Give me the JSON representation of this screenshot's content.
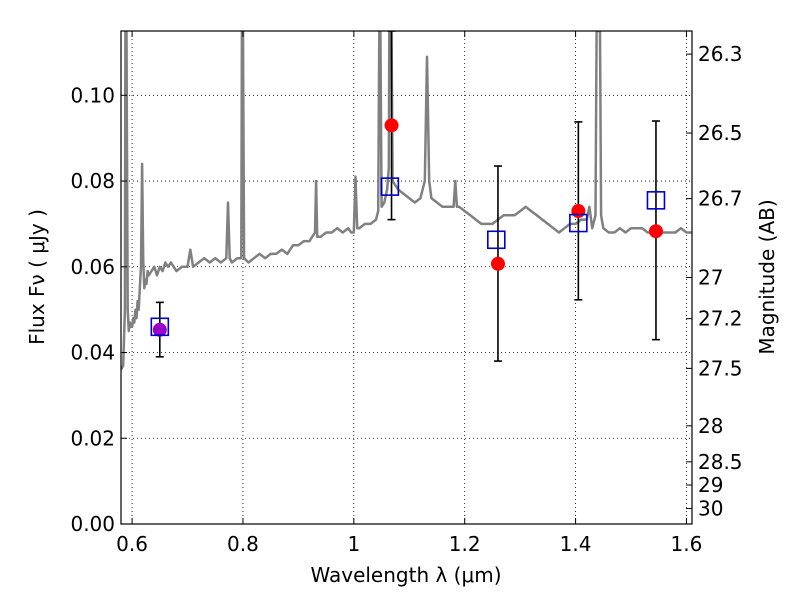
{
  "chart_data": {
    "type": "scatter",
    "xlabel": "Wavelength  λ (μm)",
    "ylabel": "Flux  Fν ( μJy )",
    "y2label": "Magnitude (AB)",
    "xlim": [
      0.58,
      1.61
    ],
    "ylim": [
      0.0,
      0.115
    ],
    "grid": true,
    "x_ticks": [
      "0.6",
      "0.8",
      "1",
      "1.2",
      "1.4",
      "1.6"
    ],
    "y_ticks": [
      "0.00",
      "0.02",
      "0.04",
      "0.06",
      "0.08",
      "0.10"
    ],
    "y2_ticks": [
      {
        "label": "26.3",
        "flux": 0.1096
      },
      {
        "label": "26.5",
        "flux": 0.0912
      },
      {
        "label": "26.7",
        "flux": 0.0759
      },
      {
        "label": "27",
        "flux": 0.0575
      },
      {
        "label": "27.2",
        "flux": 0.0479
      },
      {
        "label": "27.5",
        "flux": 0.0363
      },
      {
        "label": "28",
        "flux": 0.0229
      },
      {
        "label": "28.5",
        "flux": 0.0145
      },
      {
        "label": "29",
        "flux": 0.0091
      },
      {
        "label": "30",
        "flux": 0.0036
      }
    ],
    "model_spectrum": {
      "color": "#808080",
      "points": [
        [
          0.58,
          0.036
        ],
        [
          0.584,
          0.037
        ],
        [
          0.587,
          0.05
        ],
        [
          0.588,
          0.115
        ],
        [
          0.59,
          0.115
        ],
        [
          0.592,
          0.05
        ],
        [
          0.594,
          0.045
        ],
        [
          0.596,
          0.047
        ],
        [
          0.598,
          0.046
        ],
        [
          0.6,
          0.046
        ],
        [
          0.602,
          0.048
        ],
        [
          0.604,
          0.047
        ],
        [
          0.606,
          0.05
        ],
        [
          0.608,
          0.048
        ],
        [
          0.61,
          0.052
        ],
        [
          0.612,
          0.05
        ],
        [
          0.614,
          0.055
        ],
        [
          0.616,
          0.06
        ],
        [
          0.618,
          0.084
        ],
        [
          0.62,
          0.062
        ],
        [
          0.622,
          0.055
        ],
        [
          0.624,
          0.057
        ],
        [
          0.626,
          0.056
        ],
        [
          0.628,
          0.059
        ],
        [
          0.63,
          0.058
        ],
        [
          0.635,
          0.059
        ],
        [
          0.64,
          0.06
        ],
        [
          0.645,
          0.058
        ],
        [
          0.65,
          0.06
        ],
        [
          0.655,
          0.059
        ],
        [
          0.66,
          0.061
        ],
        [
          0.665,
          0.06
        ],
        [
          0.67,
          0.061
        ],
        [
          0.675,
          0.06
        ],
        [
          0.68,
          0.059
        ],
        [
          0.69,
          0.06
        ],
        [
          0.7,
          0.06
        ],
        [
          0.705,
          0.064
        ],
        [
          0.71,
          0.06
        ],
        [
          0.72,
          0.061
        ],
        [
          0.73,
          0.062
        ],
        [
          0.74,
          0.061
        ],
        [
          0.75,
          0.062
        ],
        [
          0.76,
          0.061
        ],
        [
          0.77,
          0.062
        ],
        [
          0.773,
          0.075
        ],
        [
          0.776,
          0.062
        ],
        [
          0.78,
          0.061
        ],
        [
          0.79,
          0.062
        ],
        [
          0.797,
          0.062
        ],
        [
          0.798,
          0.115
        ],
        [
          0.8,
          0.115
        ],
        [
          0.802,
          0.062
        ],
        [
          0.81,
          0.061
        ],
        [
          0.82,
          0.062
        ],
        [
          0.83,
          0.063
        ],
        [
          0.84,
          0.062
        ],
        [
          0.85,
          0.063
        ],
        [
          0.86,
          0.063
        ],
        [
          0.87,
          0.064
        ],
        [
          0.88,
          0.063
        ],
        [
          0.89,
          0.065
        ],
        [
          0.9,
          0.065
        ],
        [
          0.91,
          0.066
        ],
        [
          0.92,
          0.066
        ],
        [
          0.93,
          0.068
        ],
        [
          0.932,
          0.08
        ],
        [
          0.934,
          0.067
        ],
        [
          0.94,
          0.067
        ],
        [
          0.95,
          0.068
        ],
        [
          0.96,
          0.068
        ],
        [
          0.97,
          0.069
        ],
        [
          0.98,
          0.068
        ],
        [
          0.99,
          0.069
        ],
        [
          0.995,
          0.068
        ],
        [
          1.0,
          0.068
        ],
        [
          1.003,
          0.081
        ],
        [
          1.006,
          0.069
        ],
        [
          1.01,
          0.069
        ],
        [
          1.02,
          0.07
        ],
        [
          1.03,
          0.07
        ],
        [
          1.04,
          0.071
        ],
        [
          1.044,
          0.073
        ],
        [
          1.046,
          0.115
        ],
        [
          1.048,
          0.115
        ],
        [
          1.05,
          0.074
        ],
        [
          1.055,
          0.075
        ],
        [
          1.06,
          0.078
        ],
        [
          1.063,
          0.083
        ],
        [
          1.064,
          0.115
        ],
        [
          1.068,
          0.115
        ],
        [
          1.07,
          0.08
        ],
        [
          1.08,
          0.078
        ],
        [
          1.09,
          0.077
        ],
        [
          1.1,
          0.076
        ],
        [
          1.11,
          0.075
        ],
        [
          1.12,
          0.076
        ],
        [
          1.128,
          0.08
        ],
        [
          1.132,
          0.109
        ],
        [
          1.136,
          0.08
        ],
        [
          1.14,
          0.076
        ],
        [
          1.15,
          0.075
        ],
        [
          1.16,
          0.074
        ],
        [
          1.17,
          0.074
        ],
        [
          1.18,
          0.074
        ],
        [
          1.183,
          0.08
        ],
        [
          1.186,
          0.074
        ],
        [
          1.19,
          0.074
        ],
        [
          1.2,
          0.073
        ],
        [
          1.21,
          0.072
        ],
        [
          1.22,
          0.071
        ],
        [
          1.23,
          0.07
        ],
        [
          1.24,
          0.07
        ],
        [
          1.25,
          0.07
        ],
        [
          1.26,
          0.071
        ],
        [
          1.27,
          0.072
        ],
        [
          1.28,
          0.072
        ],
        [
          1.29,
          0.072
        ],
        [
          1.3,
          0.073
        ],
        [
          1.31,
          0.074
        ],
        [
          1.32,
          0.073
        ],
        [
          1.33,
          0.072
        ],
        [
          1.34,
          0.071
        ],
        [
          1.35,
          0.07
        ],
        [
          1.36,
          0.069
        ],
        [
          1.37,
          0.068
        ],
        [
          1.38,
          0.069
        ],
        [
          1.39,
          0.07
        ],
        [
          1.4,
          0.07
        ],
        [
          1.41,
          0.071
        ],
        [
          1.42,
          0.071
        ],
        [
          1.425,
          0.074
        ],
        [
          1.43,
          0.069
        ],
        [
          1.436,
          0.072
        ],
        [
          1.438,
          0.115
        ],
        [
          1.444,
          0.115
        ],
        [
          1.446,
          0.072
        ],
        [
          1.45,
          0.069
        ],
        [
          1.46,
          0.068
        ],
        [
          1.47,
          0.068
        ],
        [
          1.48,
          0.069
        ],
        [
          1.49,
          0.068
        ],
        [
          1.5,
          0.069
        ],
        [
          1.51,
          0.069
        ],
        [
          1.52,
          0.069
        ],
        [
          1.53,
          0.068
        ],
        [
          1.54,
          0.068
        ],
        [
          1.55,
          0.068
        ],
        [
          1.56,
          0.068
        ],
        [
          1.57,
          0.068
        ],
        [
          1.58,
          0.068
        ],
        [
          1.59,
          0.069
        ],
        [
          1.6,
          0.068
        ],
        [
          1.61,
          0.068
        ]
      ]
    },
    "model_photometry": {
      "marker": "open-square",
      "color": "#0000cc",
      "points": [
        {
          "x": 0.65,
          "y": 0.046
        },
        {
          "x": 1.065,
          "y": 0.0787
        },
        {
          "x": 1.257,
          "y": 0.0663
        },
        {
          "x": 1.405,
          "y": 0.0702
        },
        {
          "x": 1.545,
          "y": 0.0755
        }
      ]
    },
    "observed": {
      "marker": "filled-circle",
      "color": "#ff0000",
      "points": [
        {
          "x": 0.65,
          "y": 0.0453,
          "err_low": 0.039,
          "err_high": 0.0517,
          "color": "#9900cc"
        },
        {
          "x": 1.068,
          "y": 0.093,
          "err_low": 0.071,
          "err_high": 0.115
        },
        {
          "x": 1.26,
          "y": 0.0607,
          "err_low": 0.038,
          "err_high": 0.0835
        },
        {
          "x": 1.405,
          "y": 0.073,
          "err_low": 0.0523,
          "err_high": 0.0938
        },
        {
          "x": 1.545,
          "y": 0.0683,
          "err_low": 0.043,
          "err_high": 0.094
        }
      ]
    }
  }
}
